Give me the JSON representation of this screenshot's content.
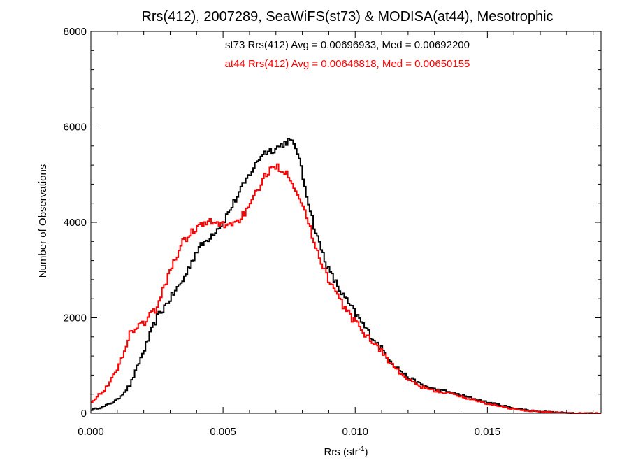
{
  "chart_data": {
    "type": "line",
    "step": true,
    "title": "Rrs(412), 2007289, SeaWiFS(st73) & MODISA(at44), Mesotrophic",
    "xlabel": {
      "main": "Rrs (str",
      "superscript": "-1",
      "close": ")"
    },
    "ylabel": "Number of Observations",
    "xlim": [
      0.0,
      0.0193
    ],
    "ylim": [
      0,
      8000
    ],
    "xticks": [
      {
        "value": 0.0,
        "label": "0.000"
      },
      {
        "value": 0.005,
        "label": "0.005"
      },
      {
        "value": 0.01,
        "label": "0.010"
      },
      {
        "value": 0.015,
        "label": "0.015"
      }
    ],
    "yticks": [
      {
        "value": 0,
        "label": "0"
      },
      {
        "value": 2000,
        "label": "2000"
      },
      {
        "value": 4000,
        "label": "4000"
      },
      {
        "value": 6000,
        "label": "6000"
      },
      {
        "value": 8000,
        "label": "8000"
      }
    ],
    "x_minor_step": 0.001,
    "y_minor_step": 400,
    "grid": false,
    "annotations": [
      {
        "text": "st73 Rrs(412) Avg = 0.00696933, Med = 0.00692200",
        "color": "#000000"
      },
      {
        "text": "at44 Rrs(412) Avg = 0.00646818, Med = 0.00650155",
        "color": "#ff0000"
      }
    ],
    "series": [
      {
        "id": "st73",
        "color": "#000000",
        "x": [
          0.0,
          0.0005,
          0.001,
          0.0015,
          0.002,
          0.0025,
          0.003,
          0.0035,
          0.004,
          0.0045,
          0.005,
          0.0055,
          0.006,
          0.0065,
          0.007,
          0.0075,
          0.0078,
          0.008,
          0.0085,
          0.009,
          0.0095,
          0.01,
          0.0105,
          0.011,
          0.0115,
          0.012,
          0.0125,
          0.013,
          0.0135,
          0.014,
          0.0145,
          0.015,
          0.0155,
          0.016,
          0.0165,
          0.017,
          0.0175,
          0.018,
          0.0185,
          0.0193
        ],
        "values": [
          70,
          140,
          280,
          600,
          1300,
          2000,
          2400,
          2800,
          3400,
          3700,
          4000,
          4500,
          5000,
          5450,
          5550,
          5720,
          5550,
          5000,
          3800,
          3000,
          2500,
          2100,
          1700,
          1350,
          1000,
          750,
          600,
          500,
          450,
          380,
          300,
          230,
          170,
          110,
          70,
          40,
          20,
          10,
          5,
          0
        ]
      },
      {
        "id": "at44",
        "color": "#ff0000",
        "x": [
          0.0,
          0.0005,
          0.001,
          0.0015,
          0.002,
          0.0025,
          0.003,
          0.0035,
          0.004,
          0.0045,
          0.005,
          0.0055,
          0.006,
          0.0065,
          0.007,
          0.0075,
          0.008,
          0.0085,
          0.009,
          0.0095,
          0.01,
          0.0105,
          0.011,
          0.0115,
          0.012,
          0.0125,
          0.013,
          0.0135,
          0.014,
          0.0145,
          0.015,
          0.0155,
          0.016,
          0.0165,
          0.017,
          0.0175,
          0.018,
          0.0185,
          0.0193
        ],
        "values": [
          230,
          480,
          900,
          1700,
          1900,
          2200,
          3000,
          3600,
          3900,
          4000,
          3950,
          4000,
          4300,
          4900,
          5200,
          5000,
          4400,
          3500,
          2800,
          2300,
          1900,
          1600,
          1300,
          950,
          700,
          550,
          470,
          430,
          350,
          280,
          200,
          140,
          90,
          55,
          30,
          15,
          8,
          4,
          0
        ]
      }
    ]
  }
}
